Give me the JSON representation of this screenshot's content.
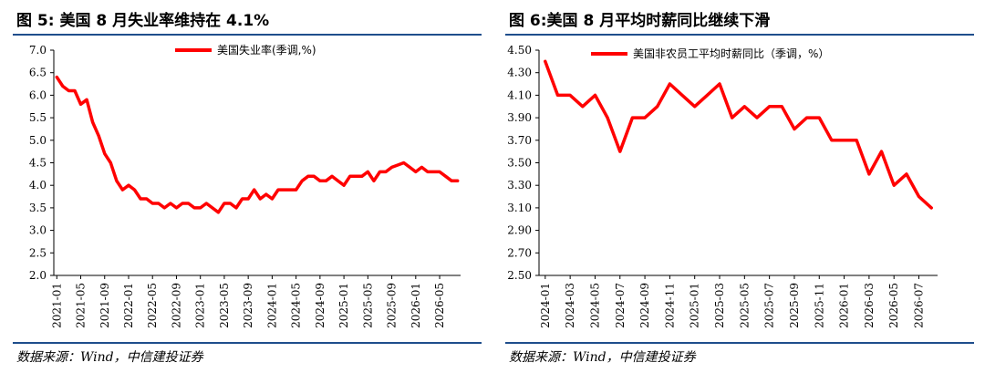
{
  "panels": [
    {
      "title": "图 5:  美国 8 月失业率维持在 4.1%",
      "source": "数据来源：Wind，中信建投证券"
    },
    {
      "title": "图 6:美国 8 月平均时薪同比继续下滑",
      "source": "数据来源：Wind，中信建投证券"
    }
  ],
  "chart_data": [
    {
      "type": "line",
      "title": "",
      "xlabel": "",
      "ylabel": "",
      "ylim": [
        2.0,
        7.0
      ],
      "yticks": [
        "7.0",
        "6.5",
        "6.0",
        "5.5",
        "5.0",
        "4.5",
        "4.0",
        "3.5",
        "3.0",
        "2.5",
        "2.0"
      ],
      "xticks": [
        "2021-01",
        "2021-05",
        "2021-09",
        "2022-01",
        "2022-05",
        "2022-09",
        "2023-01",
        "2023-05",
        "2023-09",
        "2024-01",
        "2024-05",
        "2024-09",
        "2025-01",
        "2025-05",
        "2025-09",
        "2026-01",
        "2026-05"
      ],
      "legend": "top-center",
      "grid": false,
      "line_color": "#ff0000",
      "x": [
        "2021-01",
        "2021-02",
        "2021-03",
        "2021-04",
        "2021-05",
        "2021-06",
        "2021-07",
        "2021-08",
        "2021-09",
        "2021-10",
        "2021-11",
        "2021-12",
        "2022-01",
        "2022-02",
        "2022-03",
        "2022-04",
        "2022-05",
        "2022-06",
        "2022-07",
        "2022-08",
        "2022-09",
        "2022-10",
        "2022-11",
        "2022-12",
        "2023-01",
        "2023-02",
        "2023-03",
        "2023-04",
        "2023-05",
        "2023-06",
        "2023-07",
        "2023-08",
        "2023-09",
        "2023-10",
        "2023-11",
        "2023-12",
        "2024-01",
        "2024-02",
        "2024-03",
        "2024-04",
        "2024-05",
        "2024-06",
        "2024-07",
        "2024-08",
        "2024-09",
        "2024-10",
        "2024-11",
        "2024-12",
        "2025-01",
        "2025-02",
        "2025-03",
        "2025-04",
        "2025-05",
        "2025-06",
        "2025-07",
        "2025-08",
        "2025-09",
        "2025-10",
        "2025-11",
        "2025-12",
        "2026-01",
        "2026-02",
        "2026-03",
        "2026-04",
        "2026-05",
        "2026-06",
        "2026-07",
        "2026-08"
      ],
      "series": [
        {
          "name": "美国失业率(季调,%)",
          "values": [
            6.4,
            6.2,
            6.1,
            6.1,
            5.8,
            5.9,
            5.4,
            5.1,
            4.7,
            4.5,
            4.1,
            3.9,
            4.0,
            3.9,
            3.7,
            3.7,
            3.6,
            3.6,
            3.5,
            3.6,
            3.5,
            3.6,
            3.6,
            3.5,
            3.5,
            3.6,
            3.5,
            3.4,
            3.6,
            3.6,
            3.5,
            3.7,
            3.7,
            3.9,
            3.7,
            3.8,
            3.7,
            3.9,
            3.9,
            3.9,
            3.9,
            4.1,
            4.2,
            4.2,
            4.1,
            4.1,
            4.2,
            4.1,
            4.0,
            4.2,
            4.2,
            4.2,
            4.3,
            4.1,
            4.3,
            4.3,
            4.4,
            4.45,
            4.5,
            4.4,
            4.3,
            4.4,
            4.3,
            4.3,
            4.3,
            4.2,
            4.1,
            4.1
          ]
        }
      ]
    },
    {
      "type": "line",
      "title": "",
      "xlabel": "",
      "ylabel": "",
      "ylim": [
        2.5,
        4.5
      ],
      "yticks": [
        "4.50",
        "4.30",
        "4.10",
        "3.90",
        "3.70",
        "3.50",
        "3.30",
        "3.10",
        "2.90",
        "2.70",
        "2.50"
      ],
      "xticks": [
        "2024-01",
        "2024-03",
        "2024-05",
        "2024-07",
        "2024-09",
        "2024-11",
        "2025-01",
        "2025-03",
        "2025-05",
        "2025-07",
        "2025-09",
        "2025-11",
        "2026-01",
        "2026-03",
        "2026-05",
        "2026-07"
      ],
      "legend": "top-center",
      "grid": false,
      "line_color": "#ff0000",
      "x": [
        "2024-01",
        "2024-02",
        "2024-03",
        "2024-04",
        "2024-05",
        "2024-06",
        "2024-07",
        "2024-08",
        "2024-09",
        "2024-10",
        "2024-11",
        "2024-12",
        "2025-01",
        "2025-02",
        "2025-03",
        "2025-04",
        "2025-05",
        "2025-06",
        "2025-07",
        "2025-08",
        "2025-09",
        "2025-10",
        "2025-11",
        "2025-12",
        "2026-01",
        "2026-02",
        "2026-03",
        "2026-04",
        "2026-05",
        "2026-06",
        "2026-07",
        "2026-08"
      ],
      "series": [
        {
          "name": "美国非农员工平均时薪同比（季调，%）",
          "values": [
            4.4,
            4.1,
            4.1,
            4.0,
            4.1,
            3.9,
            3.6,
            3.9,
            3.9,
            4.0,
            4.2,
            4.1,
            4.0,
            4.1,
            4.2,
            3.9,
            4.0,
            3.9,
            4.0,
            4.0,
            3.8,
            3.9,
            3.9,
            3.7,
            3.7,
            3.7,
            3.4,
            3.6,
            3.3,
            3.4,
            3.2,
            3.1
          ]
        }
      ]
    }
  ]
}
